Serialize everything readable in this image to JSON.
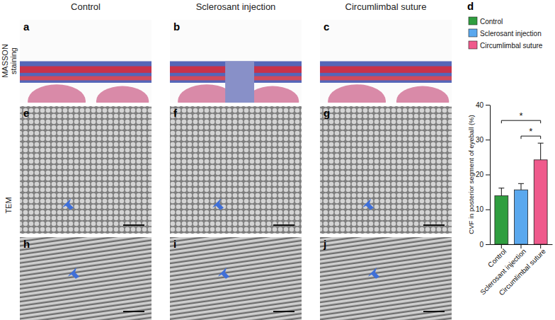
{
  "figure": {
    "column_headers": [
      "Control",
      "Sclerosant injection",
      "Circumlimbal suture"
    ],
    "row_labels": [
      "MASSON staining",
      "TEM"
    ],
    "panel_labels": [
      "a",
      "b",
      "c",
      "d",
      "e",
      "f",
      "g",
      "h",
      "i",
      "j"
    ]
  },
  "chart_data": {
    "type": "bar",
    "categories": [
      "Control",
      "Sclerosant injection",
      "Circumlimbal suture"
    ],
    "values": [
      13.9,
      15.6,
      24.2
    ],
    "errors": [
      2.2,
      1.8,
      4.8
    ],
    "colors": [
      "#2f9e3f",
      "#5aa8ee",
      "#ef5a8c"
    ],
    "y_label": "CVF in posterior segment of eyeball (%)",
    "ylim": [
      0,
      40
    ],
    "yticks": [
      0,
      10,
      20,
      30,
      40
    ],
    "legend": "top",
    "grid": false,
    "annotations": [
      {
        "from": "Control",
        "to": "Circumlimbal suture",
        "text": "*"
      },
      {
        "from": "Sclerosant injection",
        "to": "Circumlimbal suture",
        "text": "*"
      }
    ]
  }
}
